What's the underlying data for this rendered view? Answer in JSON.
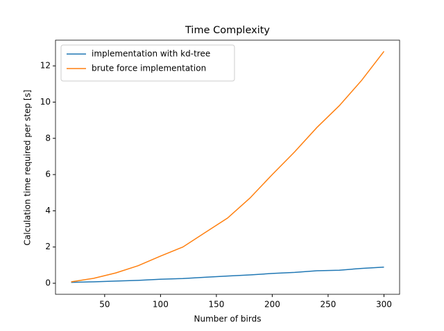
{
  "chart_data": {
    "type": "line",
    "title": "Time Complexity",
    "x_label": "Number of birds",
    "y_label": "Calculation time required per step [s]",
    "x": [
      20,
      40,
      60,
      80,
      100,
      120,
      140,
      160,
      180,
      200,
      220,
      240,
      260,
      280,
      300
    ],
    "series": [
      {
        "name": "implementation with kd-tree",
        "color": "#1f77b4",
        "values": [
          0.05,
          0.08,
          0.12,
          0.16,
          0.22,
          0.26,
          0.33,
          0.4,
          0.46,
          0.54,
          0.6,
          0.69,
          0.72,
          0.82,
          0.89
        ]
      },
      {
        "name": "brute force implementation",
        "color": "#ff7f0e",
        "values": [
          0.08,
          0.27,
          0.57,
          0.97,
          1.5,
          2.0,
          2.8,
          3.6,
          4.7,
          6.0,
          7.25,
          8.6,
          9.8,
          11.2,
          12.8
        ]
      }
    ],
    "xlim": [
      6,
      314
    ],
    "xticks": [
      50,
      100,
      150,
      200,
      250,
      300
    ],
    "ylim": [
      -0.61,
      13.42
    ],
    "yticks": [
      0,
      2,
      4,
      6,
      8,
      10,
      12
    ],
    "legend": "upper left"
  }
}
